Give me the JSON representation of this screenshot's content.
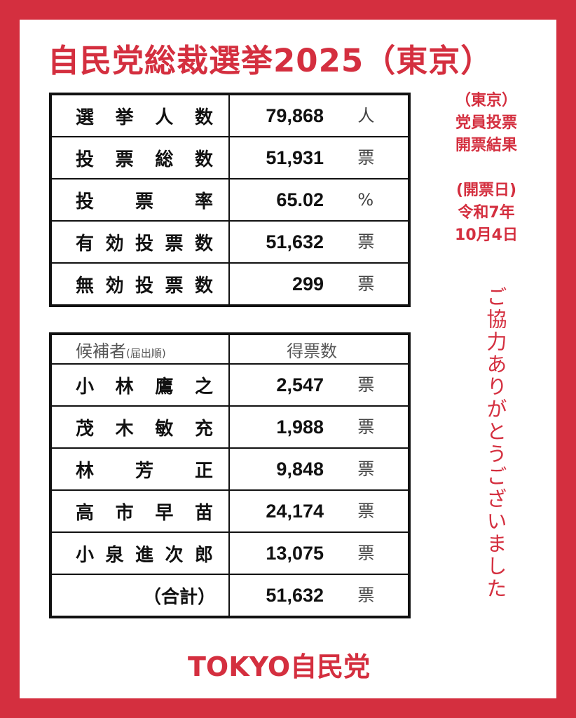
{
  "title": "自民党総裁選挙2025（東京）",
  "side": {
    "line1": "（東京）",
    "line2": "党員投票",
    "line3": "開票結果",
    "line4": "(開票日)",
    "line5": "令和7年",
    "line6": "10月4日"
  },
  "thanks": "ご協力ありがとうございました",
  "stats": [
    {
      "label": [
        "選",
        "挙",
        "人",
        "数"
      ],
      "value": "79,868",
      "unit": "人"
    },
    {
      "label": [
        "投",
        "票",
        "総",
        "数"
      ],
      "value": "51,931",
      "unit": "票"
    },
    {
      "label": [
        "投",
        "票",
        "率"
      ],
      "value": "65.02",
      "unit": "%"
    },
    {
      "label": [
        "有",
        "効",
        "投",
        "票",
        "数"
      ],
      "value": "51,632",
      "unit": "票"
    },
    {
      "label": [
        "無",
        "効",
        "投",
        "票",
        "数"
      ],
      "value": "299",
      "unit": "票"
    }
  ],
  "candidates_header": {
    "name": "候補者",
    "note": "(届出順)",
    "votes": "得票数"
  },
  "candidates": [
    {
      "name": [
        "小",
        "林",
        "鷹",
        "之"
      ],
      "value": "2,547",
      "unit": "票"
    },
    {
      "name": [
        "茂",
        "木",
        "敏",
        "充"
      ],
      "value": "1,988",
      "unit": "票"
    },
    {
      "name": [
        "林",
        "芳",
        "正"
      ],
      "value": "9,848",
      "unit": "票"
    },
    {
      "name": [
        "高",
        "市",
        "早",
        "苗"
      ],
      "value": "24,174",
      "unit": "票"
    },
    {
      "name": [
        "小",
        "泉",
        "進",
        "次",
        "郎"
      ],
      "value": "13,075",
      "unit": "票"
    }
  ],
  "total": {
    "label": "（合計）",
    "value": "51,632",
    "unit": "票"
  },
  "footer": "TOKYO自民党",
  "colors": {
    "brand_red": "#d42f3f",
    "text": "#111111",
    "background": "#ffffff"
  }
}
